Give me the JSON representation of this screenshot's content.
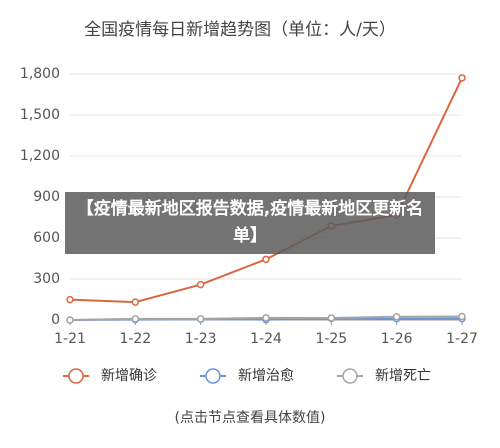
{
  "chart_data": {
    "type": "line",
    "title": "全国疫情每日新增趋势图（单位：人/天）",
    "footnote": "(点击节点查看具体数值)",
    "categories": [
      "1-21",
      "1-22",
      "1-23",
      "1-24",
      "1-25",
      "1-26",
      "1-27"
    ],
    "series": [
      {
        "name": "新增确诊",
        "color": "#d9673f",
        "values": [
          149,
          131,
          259,
          444,
          688,
          769,
          1771
        ]
      },
      {
        "name": "新增治愈",
        "color": "#6b93d6",
        "values": [
          0,
          3,
          6,
          3,
          11,
          9,
          10
        ]
      },
      {
        "name": "新增死亡",
        "color": "#a5a5a5",
        "values": [
          0,
          8,
          8,
          16,
          15,
          24,
          26
        ]
      }
    ],
    "ylim": [
      0,
      1800
    ],
    "yticks": [
      0,
      300,
      600,
      900,
      {
        "value": 1200,
        "label": "1,200"
      },
      {
        "value": 1500,
        "label": "1,500"
      },
      {
        "value": 1800,
        "label": "1,800"
      }
    ],
    "grid": true,
    "legend": "bottom"
  },
  "banner": {
    "text": "【疫情最新地区报告数据,疫情最新地区更新名单】"
  }
}
